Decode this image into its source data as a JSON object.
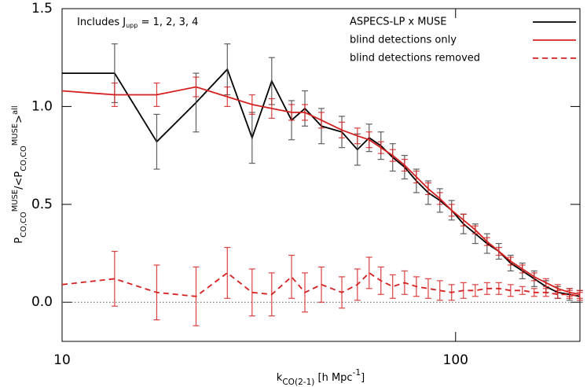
{
  "chart_data": {
    "type": "line",
    "annotation": [
      "Includes J",
      "upp",
      " = 1, 2, 3, 4"
    ],
    "xlabel": [
      "k",
      "CO(2-1)",
      " [h Mpc",
      "-1",
      "]"
    ],
    "ylabel": [
      "P",
      "CO,CO",
      "MUSE",
      "/<P",
      "CO,CO",
      "MUSE",
      ">",
      "all"
    ],
    "xscale": "log",
    "xlim": [
      10,
      207
    ],
    "ylim": [
      -0.2,
      1.5
    ],
    "xticks": [
      10,
      100
    ],
    "yticks": [
      {
        "value": 0,
        "label": "0.0"
      },
      0.5,
      {
        "value": 1,
        "label": "1.0"
      },
      1.5
    ],
    "hline": 0,
    "legend": "upper right",
    "x": [
      10,
      13.6,
      17.4,
      21.9,
      26.3,
      30.4,
      34.1,
      38.3,
      41.4,
      45.6,
      51.4,
      56.3,
      60.3,
      64.6,
      69.2,
      74.2,
      79.5,
      85.2,
      91.2,
      97.7,
      104.7,
      112.2,
      120.2,
      128.8,
      138.0,
      147.8,
      158.4,
      169.7,
      181.8,
      194.8,
      206.8
    ],
    "series": [
      {
        "name": "ASPECS-LP x MUSE",
        "color": "#000000",
        "linestyle": "solid",
        "values": [
          1.17,
          1.17,
          0.82,
          1.02,
          1.19,
          0.84,
          1.13,
          0.93,
          0.99,
          0.9,
          0.87,
          0.78,
          0.84,
          0.8,
          0.74,
          0.69,
          0.62,
          0.56,
          0.52,
          0.47,
          0.4,
          0.35,
          0.3,
          0.26,
          0.2,
          0.16,
          0.12,
          0.08,
          0.05,
          0.04,
          0.03
        ],
        "errors": [
          null,
          0.15,
          0.14,
          0.15,
          0.13,
          0.13,
          0.12,
          0.1,
          0.09,
          0.09,
          0.08,
          0.08,
          0.07,
          0.07,
          0.07,
          0.06,
          0.06,
          0.06,
          0.06,
          0.05,
          0.05,
          0.05,
          0.05,
          0.04,
          0.04,
          0.04,
          0.04,
          0.03,
          0.03,
          0.03,
          0.03
        ]
      },
      {
        "name": "blind detections only",
        "color": "#d62020",
        "linestyle": "solid",
        "values": [
          1.08,
          1.06,
          1.06,
          1.1,
          1.05,
          1.01,
          0.99,
          0.97,
          0.97,
          0.93,
          0.88,
          0.85,
          0.83,
          0.79,
          0.75,
          0.7,
          0.64,
          0.58,
          0.53,
          0.47,
          0.42,
          0.37,
          0.31,
          0.26,
          0.21,
          0.17,
          0.13,
          0.1,
          0.07,
          0.05,
          0.04
        ],
        "errors": [
          null,
          0.06,
          0.06,
          0.05,
          0.05,
          0.05,
          0.05,
          0.04,
          0.04,
          0.04,
          0.04,
          0.04,
          0.04,
          0.03,
          0.03,
          0.03,
          0.03,
          0.03,
          0.03,
          0.03,
          0.03,
          0.02,
          0.02,
          0.02,
          0.02,
          0.02,
          0.02,
          0.02,
          0.02,
          0.02,
          0.02
        ]
      },
      {
        "name": "blind detections removed",
        "color": "#d62020",
        "linestyle": "dashed",
        "values": [
          0.09,
          0.12,
          0.05,
          0.03,
          0.15,
          0.05,
          0.04,
          0.13,
          0.05,
          0.09,
          0.05,
          0.09,
          0.15,
          0.11,
          0.08,
          0.1,
          0.08,
          0.07,
          0.06,
          0.05,
          0.06,
          0.06,
          0.07,
          0.07,
          0.06,
          0.06,
          0.05,
          0.05,
          0.04,
          0.04,
          0.03
        ],
        "errors": [
          null,
          0.14,
          0.14,
          0.15,
          0.13,
          0.12,
          0.11,
          0.11,
          0.1,
          0.09,
          0.08,
          0.08,
          0.08,
          0.07,
          0.06,
          0.06,
          0.05,
          0.05,
          0.05,
          0.04,
          0.04,
          0.03,
          0.03,
          0.03,
          0.03,
          0.02,
          0.02,
          0.02,
          0.02,
          0.02,
          0.02
        ]
      }
    ]
  }
}
